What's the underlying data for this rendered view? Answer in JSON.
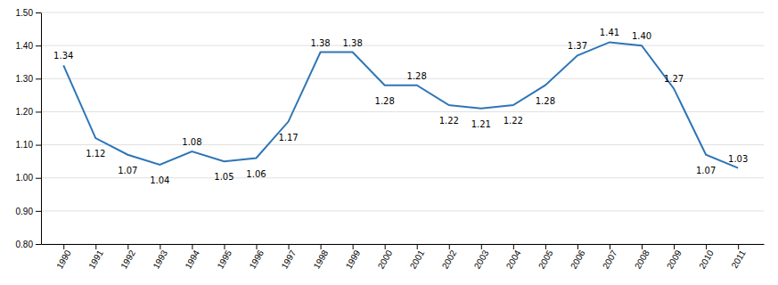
{
  "chart_data": {
    "type": "line",
    "x": [
      1990,
      1991,
      1992,
      1993,
      1994,
      1995,
      1996,
      1997,
      1998,
      1999,
      2000,
      2001,
      2002,
      2003,
      2004,
      2005,
      2006,
      2007,
      2008,
      2009,
      2010,
      2011
    ],
    "values": [
      1.34,
      1.12,
      1.07,
      1.04,
      1.08,
      1.05,
      1.06,
      1.17,
      1.38,
      1.38,
      1.28,
      1.28,
      1.22,
      1.21,
      1.22,
      1.28,
      1.37,
      1.41,
      1.4,
      1.27,
      1.07,
      1.03
    ],
    "value_labels": [
      "1.34",
      "1.12",
      "1.07",
      "1.04",
      "1.08",
      "1.05",
      "1.06",
      "1.17",
      "1.38",
      "1.38",
      "1.28",
      "1.28",
      "1.22",
      "1.21",
      "1.22",
      "1.28",
      "1.37",
      "1.41",
      "1.40",
      "1.27",
      "1.07",
      "1.03"
    ],
    "color": "#2E75B6",
    "xlim": [
      1989.3,
      2011.8
    ],
    "xticks": [
      1990,
      1991,
      1992,
      1993,
      1994,
      1995,
      1996,
      1997,
      1998,
      1999,
      2000,
      2001,
      2002,
      2003,
      2004,
      2005,
      2006,
      2007,
      2008,
      2009,
      2010,
      2011
    ],
    "ylim": [
      0.8,
      1.5
    ],
    "yticks": [
      {
        "value": 0.8,
        "label": "0.80"
      },
      {
        "value": 0.9,
        "label": "0.90"
      },
      {
        "value": 1.0,
        "label": "1.00"
      },
      {
        "value": 1.1,
        "label": "1.10"
      },
      {
        "value": 1.2,
        "label": "1.20"
      },
      {
        "value": 1.3,
        "label": "1.30"
      },
      {
        "value": 1.4,
        "label": "1.40"
      },
      {
        "value": 1.5,
        "label": "1.50"
      }
    ],
    "grid": true,
    "data_labels": true
  }
}
